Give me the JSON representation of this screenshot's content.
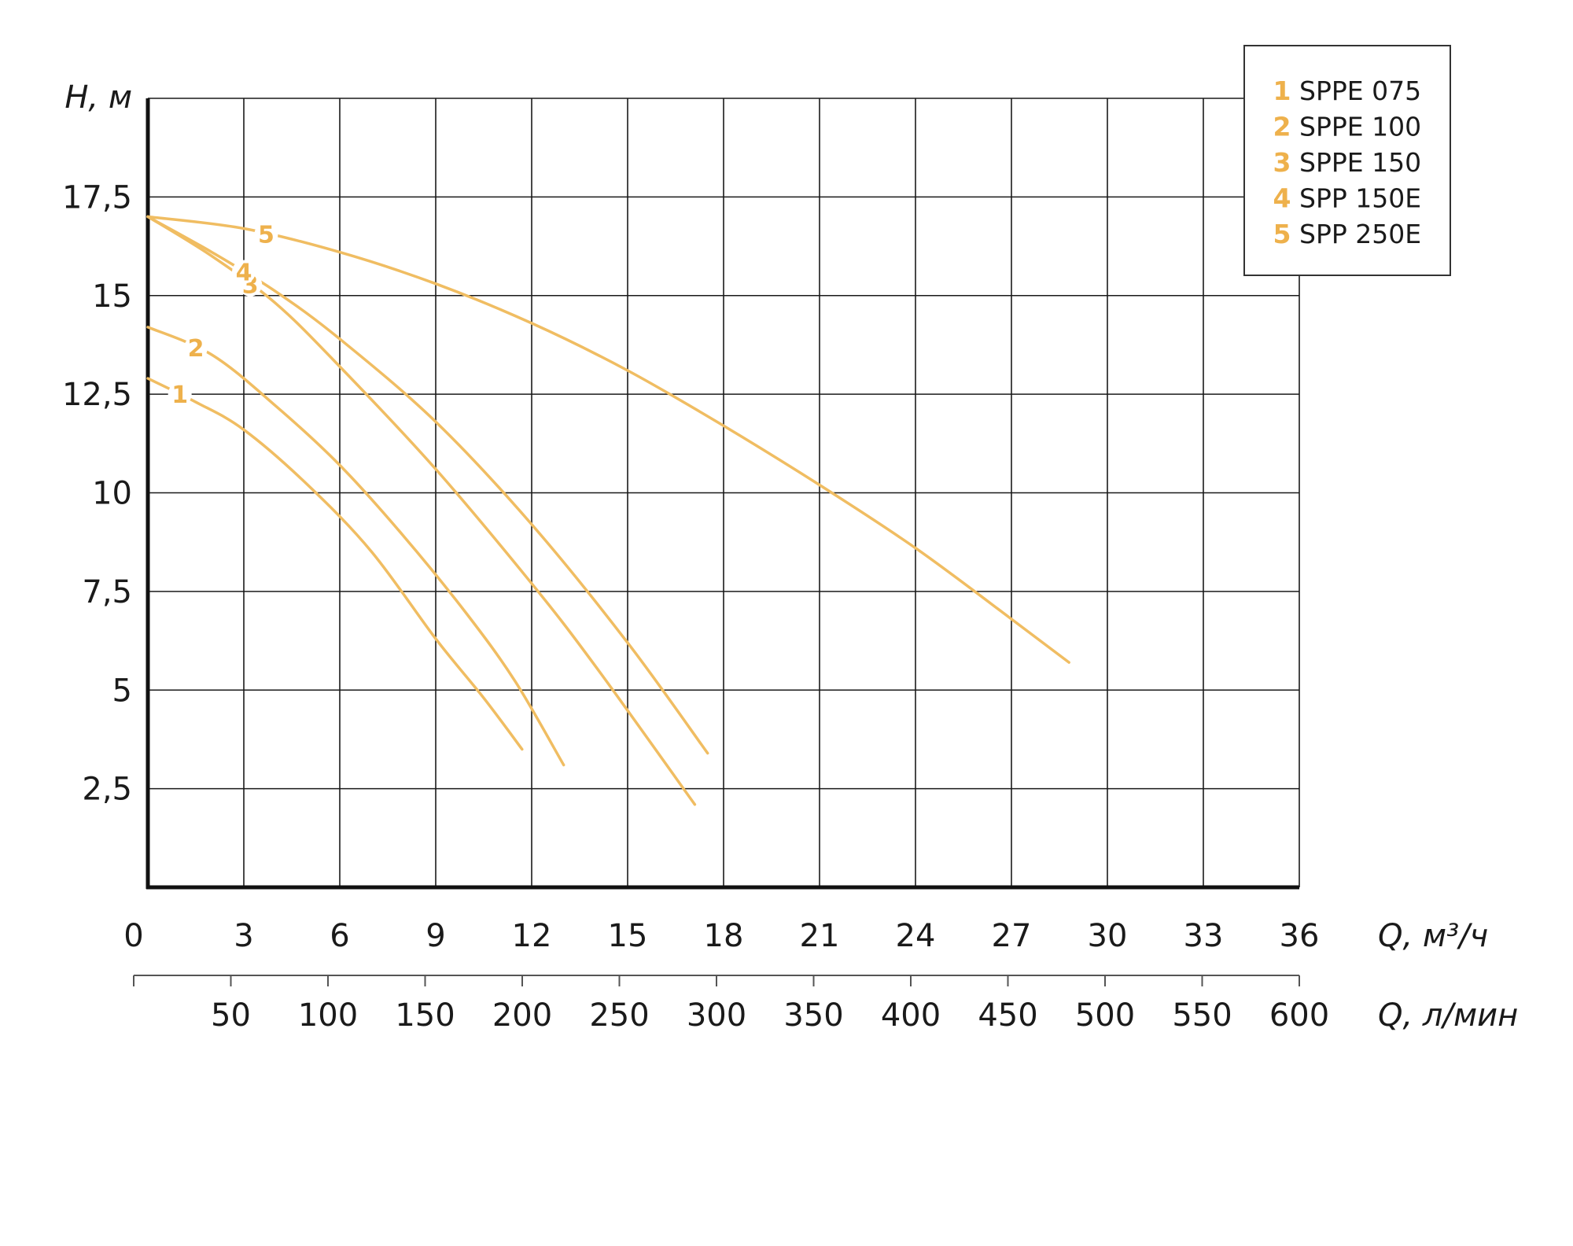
{
  "colors": {
    "curve": "#f0bd62",
    "label": "#eeb14c"
  },
  "chart_data": {
    "type": "line",
    "xlabel": "Q, м³/ч",
    "x2label": "Q, л/мин",
    "ylabel": "H, м",
    "xlim": [
      0,
      36
    ],
    "ylim": [
      0,
      20
    ],
    "x_ticks": [
      "0",
      "3",
      "6",
      "9",
      "12",
      "15",
      "18",
      "21",
      "24",
      "27",
      "30",
      "33",
      "36"
    ],
    "x2_ticks": [
      "50",
      "100",
      "150",
      "200",
      "250",
      "300",
      "350",
      "400",
      "450",
      "500",
      "550",
      "600"
    ],
    "y_ticks": [
      "2,5",
      "5",
      "7,5",
      "10",
      "12,5",
      "15",
      "17,5"
    ],
    "grid": true,
    "legend_position": "top-right",
    "series": [
      {
        "name": "SPPE 075",
        "label": "1",
        "x": [
          0,
          1.5,
          3,
          5,
          7,
          9,
          10.5,
          11.7
        ],
        "y": [
          12.9,
          12.3,
          11.6,
          10.2,
          8.5,
          6.3,
          4.8,
          3.5
        ]
      },
      {
        "name": "SPPE 100",
        "label": "2",
        "x": [
          0,
          2,
          4,
          6,
          8,
          10,
          11.5,
          13
        ],
        "y": [
          14.2,
          13.5,
          12.2,
          10.7,
          8.9,
          6.9,
          5.2,
          3.1
        ]
      },
      {
        "name": "SPPE 150",
        "label": "3",
        "x": [
          0,
          2,
          4,
          6,
          9,
          12,
          14,
          17.1
        ],
        "y": [
          17,
          16,
          14.8,
          13.2,
          10.6,
          7.7,
          5.6,
          2.1
        ]
      },
      {
        "name": "SPP 150E",
        "label": "4",
        "x": [
          0,
          2,
          4,
          6,
          9,
          12,
          15,
          17.5
        ],
        "y": [
          17,
          16.1,
          15.1,
          13.9,
          11.8,
          9.2,
          6.2,
          3.4
        ]
      },
      {
        "name": "SPP 250E",
        "label": "5",
        "x": [
          0,
          3,
          6,
          9,
          12,
          15,
          18,
          21,
          24,
          27,
          28.8
        ],
        "y": [
          17,
          16.7,
          16.1,
          15.3,
          14.3,
          13.1,
          11.7,
          10.2,
          8.6,
          6.8,
          5.7
        ]
      }
    ]
  }
}
